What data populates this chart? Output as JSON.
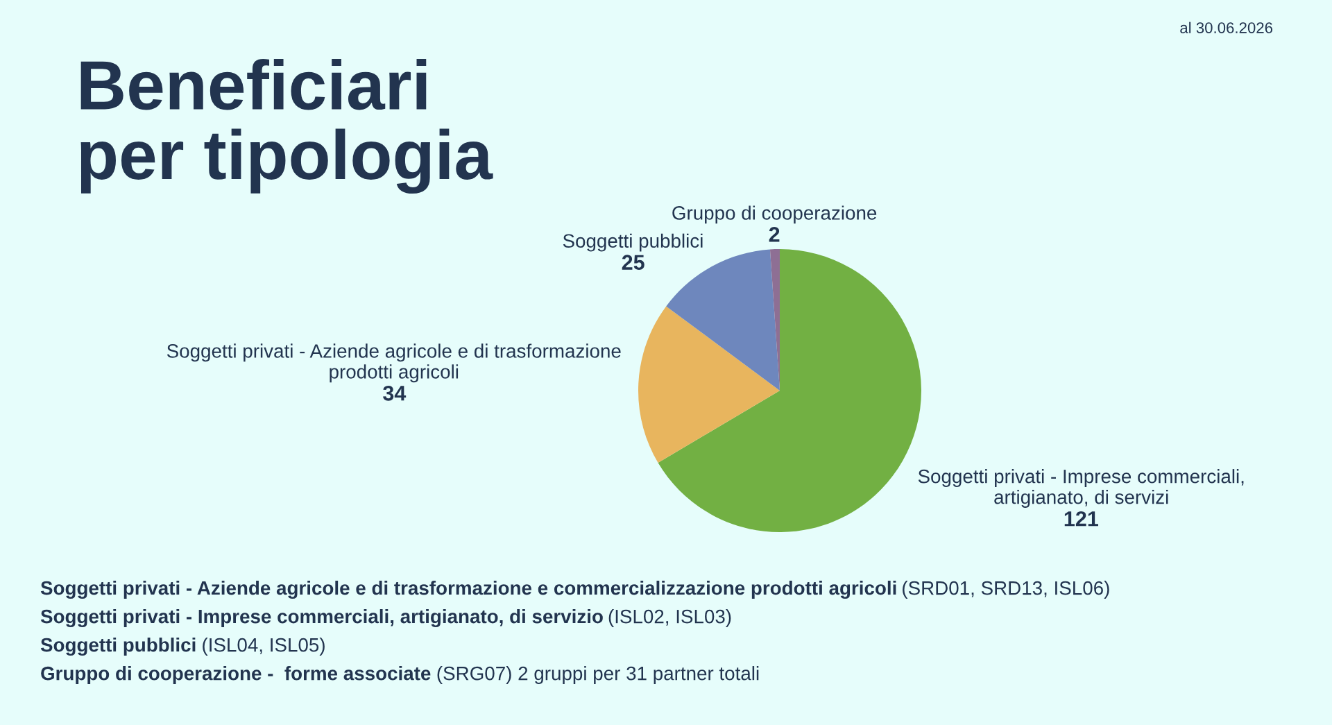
{
  "chart_data": {
    "type": "pie",
    "title": "Beneficiari\nper tipologia",
    "categories": [
      "Soggetti privati - Imprese commerciali,\nartigianato, di servizi",
      "Soggetti privati - Aziende agricole e di trasformazione\nprodotti agricoli",
      "Soggetti pubblici",
      "Gruppo di cooperazione"
    ],
    "values": [
      121,
      34,
      25,
      2
    ],
    "colors": [
      "#72b043",
      "#e8b55e",
      "#6e87bd",
      "#8e6f94"
    ],
    "data_labels": true,
    "legend": false,
    "annotations": [
      "al 30.06.2026",
      "Soggetti privati - Aziende agricole e di trasformazione e commercializzazione prodotti agricoli",
      " (SRD01, SRD13, ISL06)",
      "Soggetti privati - Imprese commerciali, artigianato, di servizio",
      " (ISL02, ISL03)",
      "Soggetti pubblici",
      " (ISL04, ISL05)",
      "Gruppo di cooperazione -  forme associate",
      " (SRG07) 2 gruppi per 31 partner totali"
    ]
  }
}
